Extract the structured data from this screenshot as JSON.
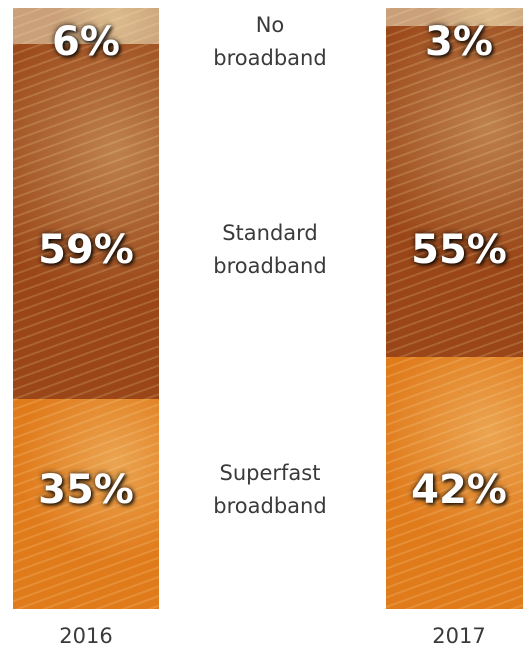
{
  "chart_data": {
    "type": "stacked-bar",
    "categories": [
      "2016",
      "2017"
    ],
    "series": [
      {
        "name": "No broadband",
        "color": "#c9a07a",
        "values": [
          6,
          3
        ],
        "value_labels": [
          "6%",
          "3%"
        ]
      },
      {
        "name": "Standard broadband",
        "color": "#9a4618",
        "values": [
          59,
          55
        ],
        "value_labels": [
          "59%",
          "55%"
        ]
      },
      {
        "name": "Superfast broadband",
        "color": "#e07b1c",
        "values": [
          35,
          42
        ],
        "value_labels": [
          "35%",
          "42%"
        ]
      }
    ],
    "ylim": [
      0,
      100
    ]
  }
}
